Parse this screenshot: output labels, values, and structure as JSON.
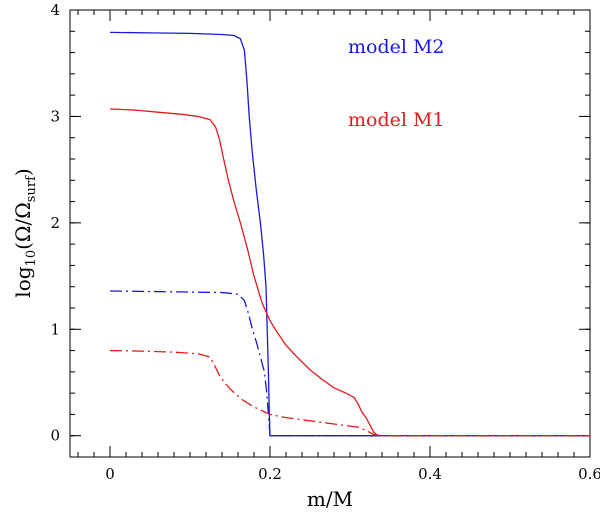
{
  "chart_data": {
    "type": "line",
    "title": "",
    "xlabel": "m/M",
    "ylabel": "log10(Ω/Ωsurf)",
    "ylabel_parts": {
      "base": "log",
      "sub1": "10",
      "open": "(Ω/Ω",
      "sub2": "surf",
      "close": ")"
    },
    "xlim": [
      -0.05,
      0.6
    ],
    "ylim": [
      -0.2,
      4.0
    ],
    "xticks": [
      0,
      0.2,
      0.4,
      0.6
    ],
    "xtick_labels": [
      "0",
      "0.2",
      "0.4",
      "0.6"
    ],
    "yticks": [
      0,
      1,
      2,
      3,
      4
    ],
    "ytick_labels": [
      "0",
      "1",
      "2",
      "3",
      "4"
    ],
    "x_minor_step": 0.02,
    "y_minor_step": 0.2,
    "grid": false,
    "legend": [
      {
        "label": "model M2",
        "color": "#1a1adc"
      },
      {
        "label": "model M1",
        "color": "#e01c1c"
      }
    ],
    "series": [
      {
        "name": "model M2 (solid)",
        "model": "M2",
        "color": "#1a1adc",
        "style": "solid",
        "points": [
          [
            0,
            3.79
          ],
          [
            0.05,
            3.785
          ],
          [
            0.1,
            3.78
          ],
          [
            0.14,
            3.77
          ],
          [
            0.155,
            3.76
          ],
          [
            0.163,
            3.73
          ],
          [
            0.168,
            3.62
          ],
          [
            0.171,
            3.35
          ],
          [
            0.174,
            3.0
          ],
          [
            0.178,
            2.65
          ],
          [
            0.183,
            2.3
          ],
          [
            0.188,
            2.0
          ],
          [
            0.192,
            1.7
          ],
          [
            0.195,
            1.4
          ],
          [
            0.1965,
            1.0
          ],
          [
            0.198,
            0.6
          ],
          [
            0.199,
            0.25
          ],
          [
            0.2,
            0.0
          ],
          [
            0.6,
            0.0
          ]
        ]
      },
      {
        "name": "model M1 (solid)",
        "model": "M1",
        "color": "#e01c1c",
        "style": "solid",
        "points": [
          [
            0,
            3.07
          ],
          [
            0.03,
            3.06
          ],
          [
            0.06,
            3.04
          ],
          [
            0.09,
            3.02
          ],
          [
            0.11,
            3.0
          ],
          [
            0.125,
            2.97
          ],
          [
            0.132,
            2.9
          ],
          [
            0.137,
            2.78
          ],
          [
            0.142,
            2.6
          ],
          [
            0.148,
            2.4
          ],
          [
            0.155,
            2.2
          ],
          [
            0.163,
            2.0
          ],
          [
            0.172,
            1.75
          ],
          [
            0.18,
            1.5
          ],
          [
            0.19,
            1.25
          ],
          [
            0.2,
            1.08
          ],
          [
            0.21,
            0.96
          ],
          [
            0.22,
            0.85
          ],
          [
            0.235,
            0.73
          ],
          [
            0.25,
            0.62
          ],
          [
            0.265,
            0.53
          ],
          [
            0.28,
            0.45
          ],
          [
            0.295,
            0.4
          ],
          [
            0.3,
            0.38
          ],
          [
            0.305,
            0.36
          ],
          [
            0.31,
            0.3
          ],
          [
            0.315,
            0.22
          ],
          [
            0.32,
            0.17
          ],
          [
            0.325,
            0.1
          ],
          [
            0.33,
            0.03
          ],
          [
            0.335,
            0.0
          ],
          [
            0.6,
            0.0
          ]
        ]
      },
      {
        "name": "model M2 (dash-dot)",
        "model": "M2",
        "color": "#1a1adc",
        "style": "dashdot",
        "points": [
          [
            0,
            1.36
          ],
          [
            0.05,
            1.355
          ],
          [
            0.1,
            1.35
          ],
          [
            0.14,
            1.345
          ],
          [
            0.16,
            1.33
          ],
          [
            0.168,
            1.27
          ],
          [
            0.173,
            1.15
          ],
          [
            0.178,
            1.0
          ],
          [
            0.183,
            0.88
          ],
          [
            0.188,
            0.74
          ],
          [
            0.193,
            0.6
          ],
          [
            0.196,
            0.4
          ],
          [
            0.198,
            0.2
          ],
          [
            0.2,
            0.0
          ],
          [
            0.6,
            0.0
          ]
        ]
      },
      {
        "name": "model M1 (dash-dot)",
        "model": "M1",
        "color": "#e01c1c",
        "style": "dashdot",
        "points": [
          [
            0,
            0.8
          ],
          [
            0.04,
            0.795
          ],
          [
            0.08,
            0.785
          ],
          [
            0.11,
            0.77
          ],
          [
            0.125,
            0.74
          ],
          [
            0.13,
            0.67
          ],
          [
            0.138,
            0.55
          ],
          [
            0.15,
            0.44
          ],
          [
            0.165,
            0.34
          ],
          [
            0.18,
            0.27
          ],
          [
            0.2,
            0.2
          ],
          [
            0.22,
            0.17
          ],
          [
            0.25,
            0.14
          ],
          [
            0.28,
            0.11
          ],
          [
            0.3,
            0.09
          ],
          [
            0.31,
            0.08
          ],
          [
            0.32,
            0.05
          ],
          [
            0.33,
            0.01
          ],
          [
            0.34,
            0.0
          ],
          [
            0.6,
            0.0
          ]
        ]
      }
    ]
  }
}
